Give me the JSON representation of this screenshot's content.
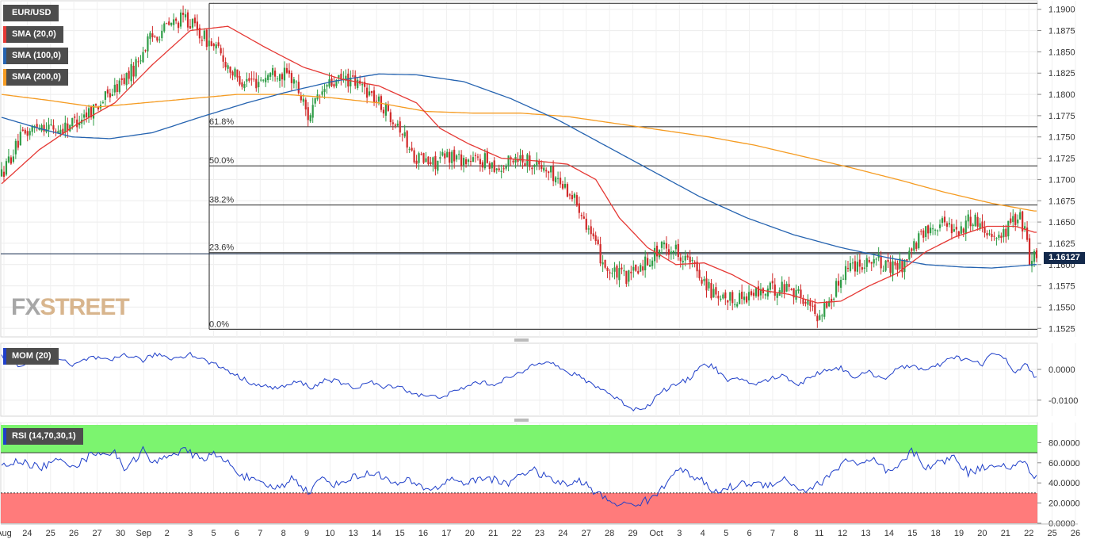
{
  "legends": {
    "pair": "EUR/USD",
    "sma20": "SMA (20,0)",
    "sma100": "SMA (100,0)",
    "sma200": "SMA (200,0)",
    "mom": "MOM (20)",
    "rsi": "RSI (14,70,30,1)"
  },
  "logo": {
    "part1": "FX",
    "part2": "STREET"
  },
  "colors": {
    "bull": "#2e9c46",
    "bear": "#d12a2a",
    "sma20": "#e53935",
    "sma100": "#2563b0",
    "sma200": "#f59b21",
    "mom": "#1f3fc9",
    "rsi": "#1f3fc9",
    "rsi_overbought": "#7cf46f",
    "rsi_oversold": "#ff7b7b",
    "price_tag": "#13294b"
  },
  "chart_data": [
    {
      "type": "candlestick",
      "title": "EUR/USD",
      "last_price_label": "1.16127",
      "last_price": 1.16127,
      "ylim": [
        1.1515,
        1.191
      ],
      "yticks": [
        "1.1900",
        "1.1875",
        "1.1850",
        "1.1825",
        "1.1800",
        "1.1775",
        "1.1750",
        "1.1725",
        "1.1700",
        "1.1675",
        "1.1650",
        "1.1625",
        "1.1600",
        "1.1575",
        "1.1550",
        "1.1525"
      ],
      "x_labels": [
        "Aug",
        "24",
        "25",
        "26",
        "27",
        "30",
        "Sep",
        "2",
        "3",
        "5",
        "6",
        "7",
        "8",
        "9",
        "10",
        "13",
        "14",
        "15",
        "16",
        "17",
        "20",
        "21",
        "22",
        "23",
        "24",
        "27",
        "28",
        "29",
        "Oct",
        "3",
        "4",
        "5",
        "6",
        "7",
        "8",
        "11",
        "12",
        "13",
        "14",
        "15",
        "18",
        "19",
        "20",
        "21",
        "22",
        "25",
        "26"
      ],
      "fibonacci": [
        {
          "label": "61.8%",
          "value": 1.1762
        },
        {
          "label": "50.0%",
          "value": 1.1716
        },
        {
          "label": "38.2%",
          "value": 1.167
        },
        {
          "label": "23.6%",
          "value": 1.1614
        },
        {
          "label": "0.0%",
          "value": 1.1524
        }
      ],
      "top_level": 1.1907,
      "series_keypoints": {
        "close": [
          [
            0,
            1.1706
          ],
          [
            8,
            1.1748
          ],
          [
            16,
            1.1766
          ],
          [
            24,
            1.1758
          ],
          [
            32,
            1.177
          ],
          [
            40,
            1.1786
          ],
          [
            48,
            1.1806
          ],
          [
            56,
            1.183
          ],
          [
            62,
            1.1862
          ],
          [
            70,
            1.188
          ],
          [
            78,
            1.189
          ],
          [
            84,
            1.1872
          ],
          [
            92,
            1.185
          ],
          [
            100,
            1.1818
          ],
          [
            108,
            1.1815
          ],
          [
            116,
            1.1828
          ],
          [
            124,
            1.1818
          ],
          [
            130,
            1.1775
          ],
          [
            138,
            1.181
          ],
          [
            146,
            1.1818
          ],
          [
            154,
            1.1808
          ],
          [
            160,
            1.179
          ],
          [
            168,
            1.1768
          ],
          [
            174,
            1.173
          ],
          [
            182,
            1.1718
          ],
          [
            190,
            1.1728
          ],
          [
            198,
            1.1722
          ],
          [
            206,
            1.1722
          ],
          [
            212,
            1.1712
          ],
          [
            218,
            1.1728
          ],
          [
            226,
            1.172
          ],
          [
            234,
            1.1705
          ],
          [
            240,
            1.1688
          ],
          [
            246,
            1.1665
          ],
          [
            252,
            1.162
          ],
          [
            258,
            1.159
          ],
          [
            266,
            1.1585
          ],
          [
            274,
            1.1606
          ],
          [
            280,
            1.162
          ],
          [
            286,
            1.1618
          ],
          [
            292,
            1.1602
          ],
          [
            298,
            1.1582
          ],
          [
            304,
            1.1555
          ],
          [
            310,
            1.156
          ],
          [
            318,
            1.1565
          ],
          [
            326,
            1.157
          ],
          [
            334,
            1.1575
          ],
          [
            340,
            1.156
          ],
          [
            346,
            1.154
          ],
          [
            352,
            1.156
          ],
          [
            358,
            1.1598
          ],
          [
            364,
            1.1602
          ],
          [
            370,
            1.1608
          ],
          [
            376,
            1.1595
          ],
          [
            382,
            1.16
          ],
          [
            388,
            1.1625
          ],
          [
            394,
            1.1645
          ],
          [
            400,
            1.165
          ],
          [
            406,
            1.164
          ],
          [
            412,
            1.1655
          ],
          [
            418,
            1.164
          ],
          [
            424,
            1.1632
          ],
          [
            428,
            1.165
          ],
          [
            432,
            1.1655
          ],
          [
            434,
            1.164
          ],
          [
            436,
            1.1605
          ],
          [
            438,
            1.1612
          ]
        ],
        "sma20": [
          [
            0,
            1.1695
          ],
          [
            16,
            1.1735
          ],
          [
            32,
            1.1765
          ],
          [
            48,
            1.179
          ],
          [
            64,
            1.1835
          ],
          [
            80,
            1.1875
          ],
          [
            96,
            1.188
          ],
          [
            112,
            1.1855
          ],
          [
            128,
            1.1832
          ],
          [
            144,
            1.1818
          ],
          [
            160,
            1.181
          ],
          [
            176,
            1.179
          ],
          [
            186,
            1.176
          ],
          [
            198,
            1.1742
          ],
          [
            212,
            1.1725
          ],
          [
            226,
            1.1722
          ],
          [
            240,
            1.1718
          ],
          [
            252,
            1.17
          ],
          [
            262,
            1.1655
          ],
          [
            274,
            1.162
          ],
          [
            286,
            1.16
          ],
          [
            298,
            1.1602
          ],
          [
            310,
            1.1588
          ],
          [
            322,
            1.157
          ],
          [
            334,
            1.1565
          ],
          [
            346,
            1.1555
          ],
          [
            356,
            1.1557
          ],
          [
            368,
            1.1575
          ],
          [
            380,
            1.159
          ],
          [
            392,
            1.1615
          ],
          [
            404,
            1.1632
          ],
          [
            418,
            1.1645
          ],
          [
            430,
            1.1645
          ],
          [
            438,
            1.1638
          ]
        ],
        "sma100": [
          [
            0,
            1.1773
          ],
          [
            16,
            1.176
          ],
          [
            30,
            1.175
          ],
          [
            46,
            1.1748
          ],
          [
            64,
            1.1755
          ],
          [
            84,
            1.1773
          ],
          [
            104,
            1.179
          ],
          [
            120,
            1.1802
          ],
          [
            140,
            1.1815
          ],
          [
            160,
            1.1824
          ],
          [
            176,
            1.1823
          ],
          [
            196,
            1.1815
          ],
          [
            216,
            1.1795
          ],
          [
            236,
            1.177
          ],
          [
            256,
            1.174
          ],
          [
            276,
            1.171
          ],
          [
            296,
            1.168
          ],
          [
            316,
            1.1655
          ],
          [
            336,
            1.1635
          ],
          [
            356,
            1.162
          ],
          [
            376,
            1.1608
          ],
          [
            392,
            1.16
          ],
          [
            408,
            1.1597
          ],
          [
            420,
            1.1596
          ],
          [
            430,
            1.1598
          ],
          [
            438,
            1.16
          ]
        ],
        "sma200": [
          [
            0,
            1.18
          ],
          [
            20,
            1.1793
          ],
          [
            40,
            1.1785
          ],
          [
            60,
            1.179
          ],
          [
            80,
            1.1795
          ],
          [
            100,
            1.18
          ],
          [
            120,
            1.18
          ],
          [
            140,
            1.1796
          ],
          [
            160,
            1.179
          ],
          [
            180,
            1.178
          ],
          [
            200,
            1.1778
          ],
          [
            220,
            1.1778
          ],
          [
            240,
            1.1774
          ],
          [
            260,
            1.1766
          ],
          [
            280,
            1.1758
          ],
          [
            300,
            1.175
          ],
          [
            320,
            1.174
          ],
          [
            340,
            1.1727
          ],
          [
            360,
            1.1714
          ],
          [
            380,
            1.17
          ],
          [
            400,
            1.1685
          ],
          [
            420,
            1.1672
          ],
          [
            438,
            1.1663
          ]
        ]
      }
    },
    {
      "type": "line",
      "title": "MOM (20)",
      "ylim": [
        -0.0152,
        0.0085
      ],
      "yticks": [
        "0.0000",
        "-0.0100"
      ],
      "keypoints": [
        [
          0,
          0.004
        ],
        [
          8,
          0.001
        ],
        [
          16,
          0.003
        ],
        [
          22,
          0.0045
        ],
        [
          30,
          0.001
        ],
        [
          38,
          0.004
        ],
        [
          46,
          0.0025
        ],
        [
          52,
          0.005
        ],
        [
          60,
          0.003
        ],
        [
          66,
          0.005
        ],
        [
          72,
          0.0035
        ],
        [
          80,
          0.005
        ],
        [
          86,
          0.003
        ],
        [
          94,
          0.0005
        ],
        [
          102,
          -0.003
        ],
        [
          110,
          -0.0055
        ],
        [
          118,
          -0.006
        ],
        [
          126,
          -0.004
        ],
        [
          132,
          -0.006
        ],
        [
          138,
          -0.003
        ],
        [
          142,
          -0.004
        ],
        [
          150,
          -0.006
        ],
        [
          156,
          -0.004
        ],
        [
          162,
          -0.006
        ],
        [
          168,
          -0.005
        ],
        [
          172,
          -0.007
        ],
        [
          178,
          -0.0085
        ],
        [
          184,
          -0.009
        ],
        [
          190,
          -0.008
        ],
        [
          196,
          -0.006
        ],
        [
          202,
          -0.004
        ],
        [
          208,
          -0.005
        ],
        [
          214,
          -0.003
        ],
        [
          220,
          -0.0015
        ],
        [
          226,
          0.002
        ],
        [
          232,
          0.003
        ],
        [
          238,
          -0.0005
        ],
        [
          244,
          -0.002
        ],
        [
          250,
          -0.0045
        ],
        [
          256,
          -0.007
        ],
        [
          262,
          -0.01
        ],
        [
          268,
          -0.013
        ],
        [
          274,
          -0.012
        ],
        [
          280,
          -0.007
        ],
        [
          286,
          -0.005
        ],
        [
          292,
          -0.003
        ],
        [
          296,
          0.0015
        ],
        [
          302,
          0.001
        ],
        [
          308,
          -0.004
        ],
        [
          314,
          -0.003
        ],
        [
          320,
          -0.005
        ],
        [
          326,
          -0.003
        ],
        [
          332,
          -0.002
        ],
        [
          338,
          -0.005
        ],
        [
          344,
          -0.002
        ],
        [
          350,
          0.0
        ],
        [
          356,
          0.0005
        ],
        [
          362,
          -0.0025
        ],
        [
          368,
          -0.001
        ],
        [
          374,
          -0.003
        ],
        [
          380,
          0.0
        ],
        [
          386,
          0.0015
        ],
        [
          392,
          -0.0005
        ],
        [
          398,
          0.0015
        ],
        [
          404,
          0.004
        ],
        [
          410,
          0.003
        ],
        [
          416,
          0.0015
        ],
        [
          420,
          0.0055
        ],
        [
          426,
          0.003
        ],
        [
          430,
          -0.001
        ],
        [
          434,
          0.002
        ],
        [
          438,
          -0.0025
        ]
      ]
    },
    {
      "type": "line",
      "title": "RSI (14,70,30,1)",
      "ylim": [
        0,
        100
      ],
      "yticks": [
        "80.0000",
        "60.0000",
        "40.0000",
        "20.0000",
        "0.0000"
      ],
      "levels": {
        "overbought": 70,
        "oversold": 30
      },
      "keypoints": [
        [
          0,
          56
        ],
        [
          8,
          62
        ],
        [
          16,
          55
        ],
        [
          24,
          62
        ],
        [
          32,
          58
        ],
        [
          40,
          71
        ],
        [
          48,
          69
        ],
        [
          52,
          55
        ],
        [
          56,
          62
        ],
        [
          60,
          73
        ],
        [
          64,
          58
        ],
        [
          70,
          68
        ],
        [
          78,
          72
        ],
        [
          84,
          64
        ],
        [
          90,
          68
        ],
        [
          96,
          60
        ],
        [
          102,
          48
        ],
        [
          110,
          38
        ],
        [
          118,
          35
        ],
        [
          124,
          46
        ],
        [
          130,
          30
        ],
        [
          136,
          45
        ],
        [
          142,
          38
        ],
        [
          148,
          45
        ],
        [
          154,
          48
        ],
        [
          160,
          50
        ],
        [
          166,
          38
        ],
        [
          172,
          42
        ],
        [
          178,
          36
        ],
        [
          184,
          34
        ],
        [
          190,
          44
        ],
        [
          198,
          40
        ],
        [
          206,
          46
        ],
        [
          214,
          38
        ],
        [
          220,
          50
        ],
        [
          226,
          52
        ],
        [
          232,
          44
        ],
        [
          240,
          38
        ],
        [
          246,
          42
        ],
        [
          252,
          30
        ],
        [
          258,
          22
        ],
        [
          264,
          18
        ],
        [
          270,
          20
        ],
        [
          276,
          24
        ],
        [
          282,
          40
        ],
        [
          286,
          56
        ],
        [
          290,
          50
        ],
        [
          296,
          44
        ],
        [
          302,
          30
        ],
        [
          308,
          35
        ],
        [
          316,
          40
        ],
        [
          324,
          38
        ],
        [
          332,
          44
        ],
        [
          340,
          32
        ],
        [
          346,
          38
        ],
        [
          352,
          48
        ],
        [
          358,
          64
        ],
        [
          364,
          58
        ],
        [
          370,
          62
        ],
        [
          376,
          50
        ],
        [
          380,
          54
        ],
        [
          386,
          72
        ],
        [
          392,
          56
        ],
        [
          398,
          60
        ],
        [
          404,
          66
        ],
        [
          410,
          50
        ],
        [
          416,
          55
        ],
        [
          422,
          60
        ],
        [
          428,
          54
        ],
        [
          434,
          62
        ],
        [
          438,
          44
        ]
      ]
    }
  ]
}
